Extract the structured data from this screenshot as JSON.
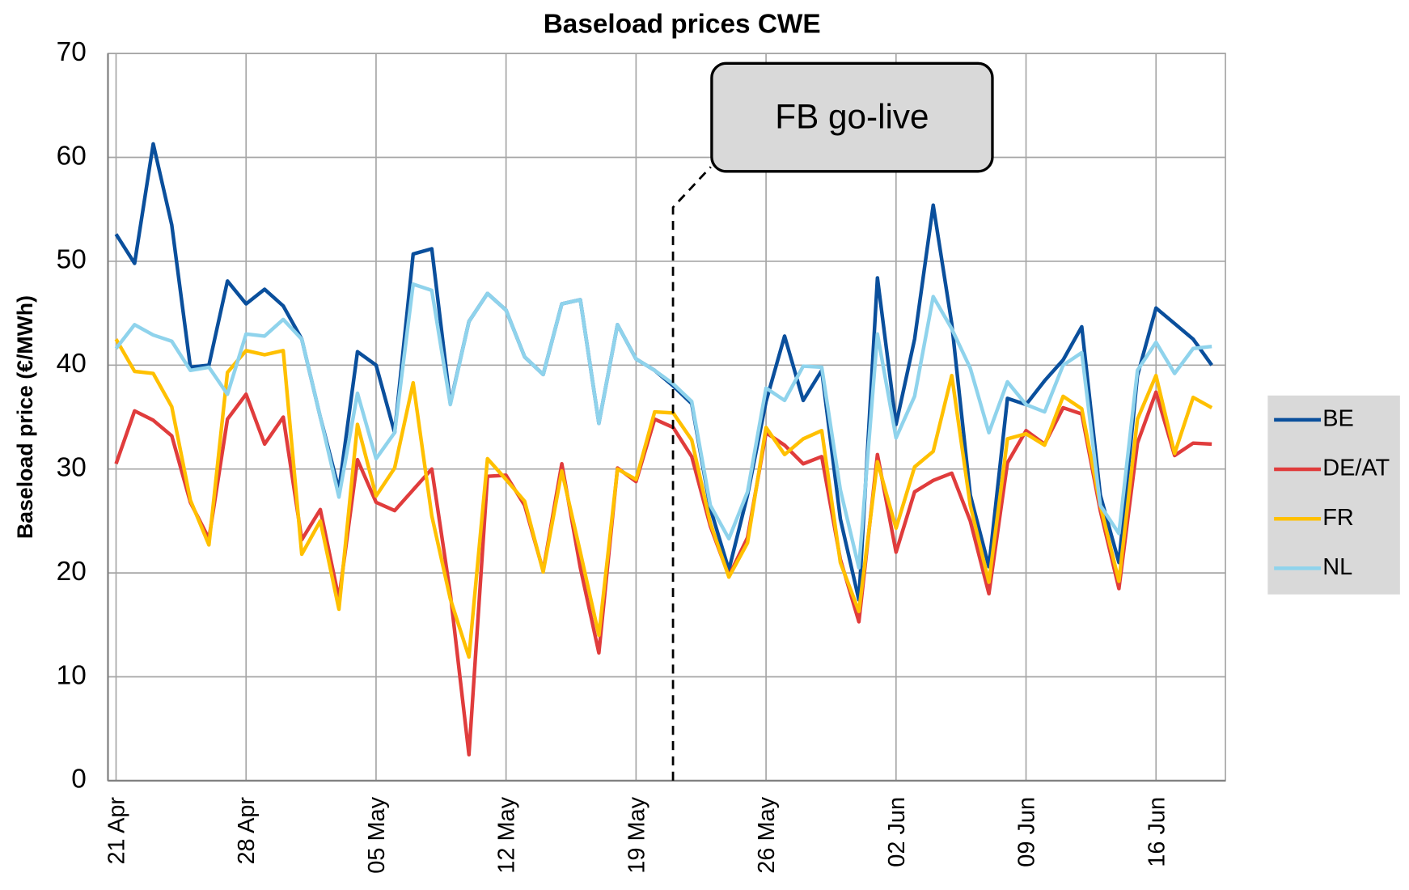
{
  "chart_data": {
    "type": "line",
    "title": "Baseload prices CWE",
    "y_label": "Baseload price (€/MWh)",
    "annotation": "FB go-live",
    "categories": [
      "21 Apr",
      null,
      null,
      null,
      null,
      null,
      null,
      "28 Apr",
      null,
      null,
      null,
      null,
      null,
      null,
      "05 May",
      null,
      null,
      null,
      null,
      null,
      null,
      "12 May",
      null,
      null,
      null,
      null,
      null,
      null,
      "19 May",
      null,
      null,
      null,
      null,
      null,
      null,
      "26 May",
      null,
      null,
      null,
      null,
      null,
      null,
      "02 Jun",
      null,
      null,
      null,
      null,
      null,
      null,
      "09 Jun",
      null,
      null,
      null,
      null,
      null,
      null,
      "16 Jun",
      null,
      null,
      null
    ],
    "series": [
      {
        "name": "BE",
        "color": "#0a4f9c",
        "values": [
          52.6,
          49.8,
          61.3,
          53.5,
          39.8,
          40,
          48.1,
          45.9,
          47.3,
          45.7,
          42.5,
          35,
          28,
          41.3,
          40,
          33.5,
          50.7,
          51.2,
          36.3,
          44.2,
          46.9,
          45.3,
          40.8,
          39.1,
          45.9,
          46.3,
          34.4,
          43.9,
          40.6,
          39.5,
          38,
          36.3,
          26.2,
          20.3,
          27.5,
          36.5,
          42.8,
          36.6,
          39.5,
          25.2,
          17.4,
          48.4,
          34.3,
          42.5,
          55.4,
          44,
          27.5,
          20.6,
          36.8,
          36.2,
          38.5,
          40.5,
          43.7,
          27.5,
          21,
          39,
          45.5,
          44,
          42.5,
          40
        ]
      },
      {
        "name": "DE/AT",
        "color": "#e03c3c",
        "values": [
          30.5,
          35.6,
          34.7,
          33.2,
          26.8,
          23.3,
          34.8,
          37.2,
          32.4,
          35,
          23.2,
          26.1,
          17.5,
          30.9,
          26.8,
          26,
          28,
          30,
          18,
          2.5,
          29.3,
          29.4,
          26.5,
          20.2,
          30.5,
          20.5,
          12.3,
          30.1,
          28.8,
          34.8,
          34,
          31.2,
          24.5,
          19.7,
          23.4,
          33.5,
          32.3,
          30.5,
          31.2,
          21.3,
          15.3,
          31.4,
          22,
          27.8,
          28.9,
          29.6,
          25,
          18,
          30.6,
          33.7,
          32.4,
          35.9,
          35.3,
          26,
          18.5,
          32.5,
          37.4,
          31.3,
          32.5,
          32.4
        ]
      },
      {
        "name": "FR",
        "color": "#ffc000",
        "values": [
          42.5,
          39.4,
          39.2,
          36,
          27,
          22.7,
          39.3,
          41.4,
          41,
          41.4,
          21.8,
          25,
          16.5,
          34.3,
          27.4,
          30.1,
          38.3,
          25.5,
          17.5,
          11.9,
          31,
          29,
          26.9,
          20.1,
          29.8,
          22,
          14,
          30,
          29,
          35.5,
          35.4,
          32.8,
          24.8,
          19.6,
          22.9,
          34,
          31.4,
          32.9,
          33.7,
          21,
          16.3,
          30.7,
          24.3,
          30.2,
          31.7,
          39,
          26.5,
          19.1,
          32.9,
          33.4,
          32.3,
          37,
          35.8,
          26.5,
          19.2,
          34.8,
          39,
          31.5,
          36.9,
          35.9
        ]
      },
      {
        "name": "NL",
        "color": "#8fd3ec",
        "values": [
          41.6,
          43.9,
          42.9,
          42.3,
          39.5,
          39.8,
          37.2,
          43,
          42.8,
          44.4,
          42.5,
          35,
          27.3,
          37.3,
          31,
          33.5,
          47.8,
          47.2,
          36.2,
          44.2,
          46.9,
          45.3,
          40.8,
          39.1,
          45.9,
          46.3,
          34.4,
          43.9,
          40.6,
          39.5,
          38.2,
          36.5,
          26.5,
          23.3,
          27.8,
          37.8,
          36.6,
          39.9,
          39.8,
          28,
          20.5,
          43,
          33,
          37,
          46.6,
          43.5,
          39.7,
          33.5,
          38.4,
          36.2,
          35.5,
          40,
          41.2,
          26.5,
          23.8,
          39.5,
          42.2,
          39.2,
          41.6,
          41.8
        ]
      }
    ],
    "ylim": [
      0,
      70
    ],
    "yticks": [
      0,
      10,
      20,
      30,
      40,
      50,
      60,
      70
    ],
    "grid": true,
    "legend": "right"
  }
}
